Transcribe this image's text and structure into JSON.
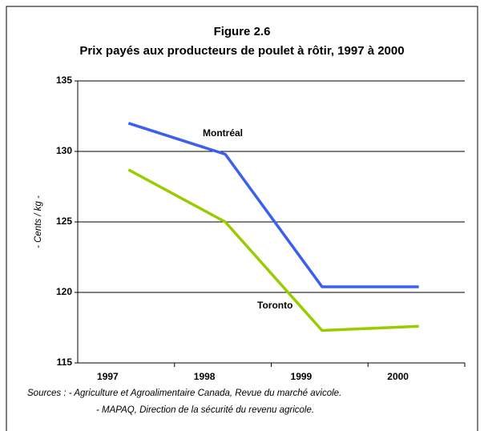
{
  "chart_data": {
    "type": "line",
    "title": "Figure 2.6",
    "subtitle": "Prix payés aux producteurs de poulet à rôtir, 1997 à 2000",
    "y_label": "- Cents / kg -",
    "categories": [
      "1997",
      "1998",
      "1999",
      "2000"
    ],
    "series": [
      {
        "name": "Montréal",
        "color": "#3b5ff0",
        "values": [
          132.0,
          129.8,
          120.4,
          120.4
        ]
      },
      {
        "name": "Toronto",
        "color": "#99cc00",
        "values": [
          128.7,
          125.0,
          117.3,
          117.6
        ]
      }
    ],
    "ylim": [
      115,
      135
    ],
    "yticks": [
      115,
      120,
      125,
      130,
      135
    ],
    "grid": true,
    "sources": [
      "Sources :  - Agriculture et Agroalimentaire Canada, Revue du marché avicole.",
      "- MAPAQ, Direction de la sécurité du revenu agricole."
    ]
  }
}
